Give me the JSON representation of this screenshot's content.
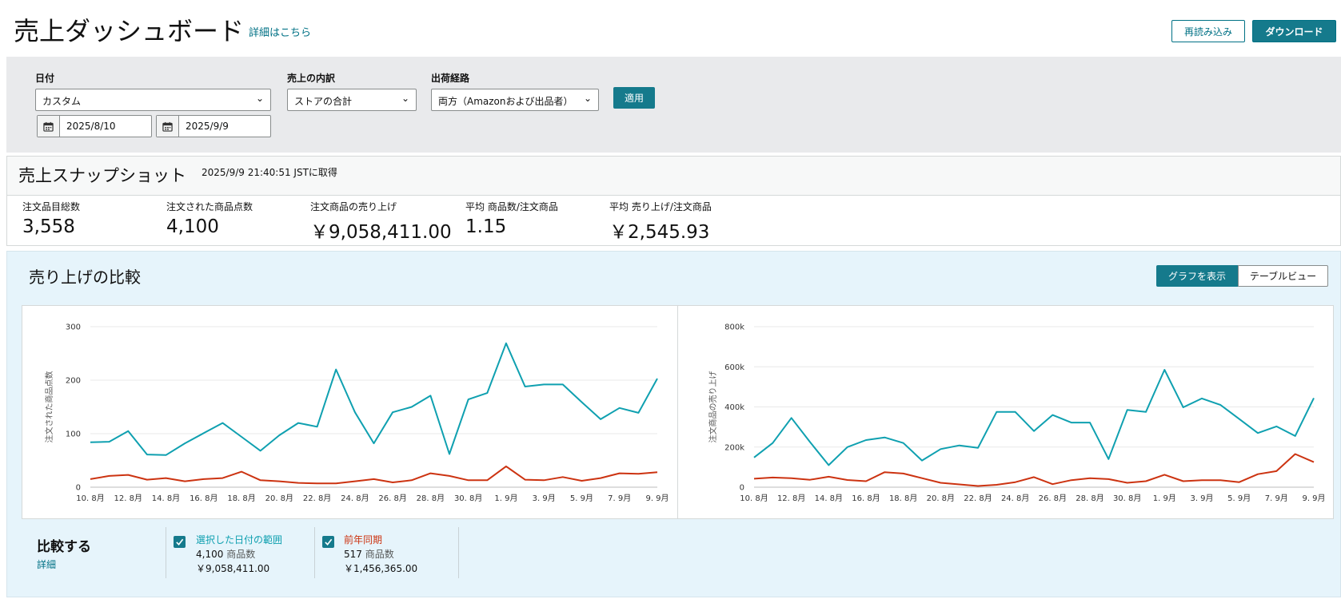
{
  "header": {
    "title": "売上ダッシュボード",
    "details_link": "詳細はこちら",
    "reload_label": "再読み込み",
    "download_label": "ダウンロード"
  },
  "filters": {
    "date_label": "日付",
    "date_value": "カスタム",
    "start_date": "2025/8/10",
    "end_date": "2025/9/9",
    "breakdown_label": "売上の内訳",
    "breakdown_value": "ストアの合計",
    "channel_label": "出荷経路",
    "channel_value": "両方（Amazonおよび出品者）",
    "apply_label": "適用"
  },
  "snapshot": {
    "title": "売上スナップショット",
    "retrieved": "2025/9/9 21:40:51 JSTに取得",
    "metrics": [
      {
        "label": "注文品目総数",
        "value": "3,558"
      },
      {
        "label": "注文された商品点数",
        "value": "4,100"
      },
      {
        "label": "注文商品の売り上げ",
        "value": "￥9,058,411.00"
      },
      {
        "label": "平均 商品数/注文商品",
        "value": "1.15"
      },
      {
        "label": "平均 売り上げ/注文商品",
        "value": "￥2,545.93"
      }
    ]
  },
  "compare": {
    "title": "売り上げの比較",
    "graph_view": "グラフを表示",
    "table_view": "テーブルビュー",
    "compare_label": "比較する",
    "details": "詳細",
    "legend": [
      {
        "name": "選択した日付の範囲",
        "units": "4,100",
        "unit_label": "商品数",
        "sales": "￥9,058,411.00",
        "color": "#0fa0b0"
      },
      {
        "name": "前年同期",
        "units": "517",
        "unit_label": "商品数",
        "sales": "￥1,456,365.00",
        "color": "#cc3311"
      }
    ]
  },
  "chart_data": [
    {
      "type": "line",
      "ylabel": "注文された商品点数",
      "ylim": [
        0,
        300
      ],
      "yticks": [
        "0",
        "100",
        "200",
        "300"
      ],
      "xticks": [
        "10. 8月",
        "12. 8月",
        "14. 8月",
        "16. 8月",
        "18. 8月",
        "20. 8月",
        "22. 8月",
        "24. 8月",
        "26. 8月",
        "28. 8月",
        "30. 8月",
        "1. 9月",
        "3. 9月",
        "5. 9月",
        "7. 9月",
        "9. 9月"
      ],
      "x": [
        "8/10",
        "8/11",
        "8/12",
        "8/13",
        "8/14",
        "8/15",
        "8/16",
        "8/17",
        "8/18",
        "8/19",
        "8/20",
        "8/21",
        "8/22",
        "8/23",
        "8/24",
        "8/25",
        "8/26",
        "8/27",
        "8/28",
        "8/29",
        "8/30",
        "8/31",
        "9/1",
        "9/2",
        "9/3",
        "9/4",
        "9/5",
        "9/6",
        "9/7",
        "9/8",
        "9/9"
      ],
      "series": [
        {
          "color": "#0fa0b0",
          "values": [
            84,
            85,
            105,
            61,
            60,
            82,
            101,
            120,
            94,
            68,
            97,
            120,
            113,
            220,
            140,
            82,
            140,
            150,
            171,
            62,
            164,
            176,
            269,
            188,
            192,
            192,
            159,
            127,
            148,
            139,
            203
          ]
        },
        {
          "color": "#cc3311",
          "values": [
            15,
            21,
            23,
            14,
            17,
            11,
            15,
            17,
            29,
            13,
            11,
            8,
            7,
            7,
            11,
            15,
            9,
            13,
            26,
            21,
            13,
            13,
            39,
            14,
            13,
            19,
            12,
            17,
            26,
            25,
            28
          ]
        }
      ]
    },
    {
      "type": "line",
      "ylabel": "注文商品の売り上げ",
      "ylim": [
        0,
        800000
      ],
      "yticks": [
        "0",
        "200k",
        "400k",
        "600k",
        "800k"
      ],
      "xticks": [
        "10. 8月",
        "12. 8月",
        "14. 8月",
        "16. 8月",
        "18. 8月",
        "20. 8月",
        "22. 8月",
        "24. 8月",
        "26. 8月",
        "28. 8月",
        "30. 8月",
        "1. 9月",
        "3. 9月",
        "5. 9月",
        "7. 9月",
        "9. 9月"
      ],
      "x": [
        "8/10",
        "8/11",
        "8/12",
        "8/13",
        "8/14",
        "8/15",
        "8/16",
        "8/17",
        "8/18",
        "8/19",
        "8/20",
        "8/21",
        "8/22",
        "8/23",
        "8/24",
        "8/25",
        "8/26",
        "8/27",
        "8/28",
        "8/29",
        "8/30",
        "8/31",
        "9/1",
        "9/2",
        "9/3",
        "9/4",
        "9/5",
        "9/6",
        "9/7",
        "9/8",
        "9/9"
      ],
      "series": [
        {
          "color": "#0fa0b0",
          "values": [
            148000,
            220000,
            345000,
            225000,
            110000,
            200000,
            235000,
            248000,
            220000,
            133000,
            190000,
            208000,
            196000,
            375000,
            375000,
            280000,
            360000,
            322000,
            322000,
            140000,
            385000,
            375000,
            585000,
            398000,
            442000,
            410000,
            340000,
            270000,
            303000,
            255000,
            444000
          ]
        },
        {
          "color": "#cc3311",
          "values": [
            42000,
            48000,
            45000,
            37000,
            52000,
            36000,
            30000,
            75000,
            68000,
            45000,
            22000,
            14000,
            6000,
            12000,
            25000,
            50000,
            15000,
            35000,
            45000,
            40000,
            22000,
            30000,
            62000,
            30000,
            35000,
            35000,
            25000,
            65000,
            80000,
            165000,
            125000
          ]
        }
      ]
    }
  ]
}
